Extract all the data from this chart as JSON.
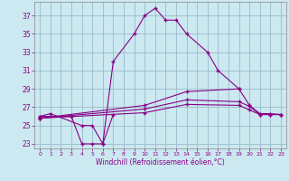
{
  "xlabel": "Windchill (Refroidissement éolien,°C)",
  "background_color": "#cce8f0",
  "line_color": "#880088",
  "grid_color": "#99bbcc",
  "ylim": [
    22.5,
    38.5
  ],
  "xlim": [
    -0.5,
    23.5
  ],
  "yticks": [
    23,
    25,
    27,
    29,
    31,
    33,
    35,
    37
  ],
  "xticks": [
    0,
    1,
    2,
    3,
    4,
    5,
    6,
    7,
    8,
    9,
    10,
    11,
    12,
    13,
    14,
    15,
    16,
    17,
    18,
    19,
    20,
    21,
    22,
    23
  ],
  "s1_x": [
    0,
    1,
    4,
    5,
    6,
    7,
    9,
    10,
    11,
    12,
    13,
    14,
    16,
    17,
    19
  ],
  "s1_y": [
    26.0,
    26.3,
    25.0,
    25.0,
    23.0,
    32.0,
    35.0,
    37.0,
    37.8,
    36.5,
    36.5,
    35.0,
    33.0,
    31.0,
    29.0
  ],
  "s2_x": [
    0,
    3,
    4,
    5,
    6,
    7
  ],
  "s2_y": [
    26.0,
    26.0,
    23.0,
    23.0,
    23.0,
    26.2
  ],
  "s3_x": [
    0,
    10,
    14,
    19,
    20,
    21,
    22,
    23
  ],
  "s3_y": [
    25.8,
    27.2,
    28.7,
    29.0,
    27.2,
    26.3,
    26.3,
    26.2
  ],
  "s4_x": [
    0,
    10,
    14,
    19,
    20,
    21,
    22,
    23
  ],
  "s4_y": [
    25.8,
    26.8,
    27.8,
    27.6,
    27.1,
    26.2,
    26.2,
    26.2
  ],
  "s5_x": [
    0,
    10,
    14,
    19,
    20,
    21,
    22,
    23
  ],
  "s5_y": [
    25.8,
    26.4,
    27.3,
    27.2,
    26.7,
    26.2,
    26.2,
    26.2
  ],
  "tick_fontsize": 5.5,
  "xlabel_fontsize": 5.5
}
